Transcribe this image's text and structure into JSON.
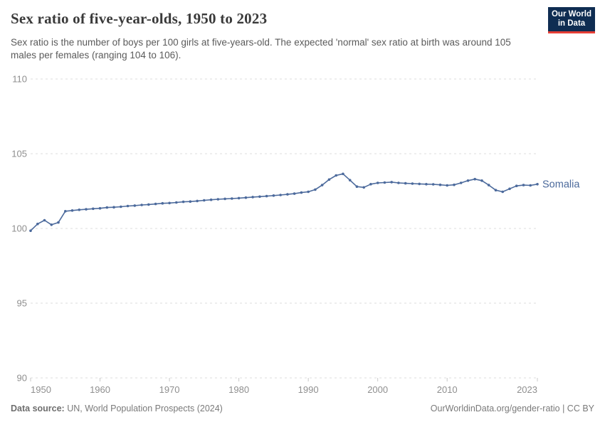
{
  "header": {
    "title": "Sex ratio of five-year-olds, 1950 to 2023",
    "subtitle": "Sex ratio is the number of boys per 100 girls at five-years-old. The expected 'normal' sex ratio at birth was around 105 males per females (ranging 104 to 106).",
    "logo": {
      "line1": "Our World",
      "line2": "in Data",
      "bg_color": "#0f2d52",
      "accent_color": "#e63e36"
    }
  },
  "chart_data": {
    "type": "line",
    "title": "Sex ratio of five-year-olds, 1950 to 2023",
    "xlabel": "",
    "ylabel": "",
    "ylim": [
      90,
      110
    ],
    "yticks": [
      110,
      105,
      100,
      95,
      90
    ],
    "xticks": [
      1950,
      1960,
      1970,
      1980,
      1990,
      2000,
      2010,
      2023
    ],
    "grid": "horizontal-dashed",
    "legend": "line-end-label",
    "x": [
      1950,
      1951,
      1952,
      1953,
      1954,
      1955,
      1956,
      1957,
      1958,
      1959,
      1960,
      1961,
      1962,
      1963,
      1964,
      1965,
      1966,
      1967,
      1968,
      1969,
      1970,
      1971,
      1972,
      1973,
      1974,
      1975,
      1976,
      1977,
      1978,
      1979,
      1980,
      1981,
      1982,
      1983,
      1984,
      1985,
      1986,
      1987,
      1988,
      1989,
      1990,
      1991,
      1992,
      1993,
      1994,
      1995,
      1996,
      1997,
      1998,
      1999,
      2000,
      2001,
      2002,
      2003,
      2004,
      2005,
      2006,
      2007,
      2008,
      2009,
      2010,
      2011,
      2012,
      2013,
      2014,
      2015,
      2016,
      2017,
      2018,
      2019,
      2020,
      2021,
      2022,
      2023
    ],
    "series": [
      {
        "name": "Somalia",
        "color": "#4C6A9C",
        "values": [
          99.85,
          100.3,
          100.55,
          100.25,
          100.4,
          101.15,
          101.2,
          101.25,
          101.28,
          101.32,
          101.35,
          101.4,
          101.42,
          101.45,
          101.5,
          101.53,
          101.57,
          101.6,
          101.64,
          101.68,
          101.7,
          101.74,
          101.78,
          101.8,
          101.84,
          101.88,
          101.92,
          101.95,
          101.98,
          102.0,
          102.03,
          102.06,
          102.1,
          102.13,
          102.16,
          102.2,
          102.24,
          102.28,
          102.33,
          102.4,
          102.45,
          102.6,
          102.9,
          103.27,
          103.55,
          103.65,
          103.23,
          102.8,
          102.75,
          102.96,
          103.05,
          103.07,
          103.1,
          103.05,
          103.02,
          103.0,
          102.98,
          102.96,
          102.95,
          102.92,
          102.88,
          102.92,
          103.05,
          103.2,
          103.3,
          103.2,
          102.9,
          102.56,
          102.45,
          102.65,
          102.85,
          102.9,
          102.88,
          102.96
        ]
      }
    ],
    "style": {
      "grid_color": "#dcdcdc",
      "tick_label_color": "#8f8f8f",
      "tick_mark_color": "#c8c8c8"
    }
  },
  "footer": {
    "source_label": "Data source:",
    "source_value": "UN, World Population Prospects (2024)",
    "link": "OurWorldinData.org/gender-ratio | CC BY"
  }
}
